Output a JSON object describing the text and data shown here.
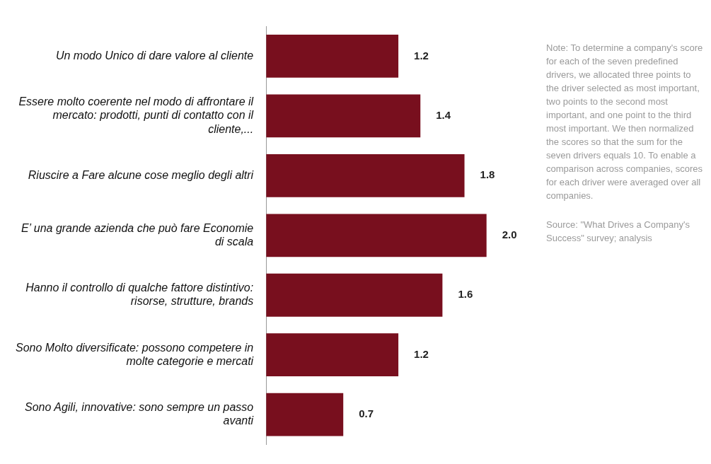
{
  "chart_data": {
    "type": "bar",
    "orientation": "horizontal",
    "categories": [
      "Un modo Unico di dare valore al cliente",
      "Essere molto coerente nel modo di affrontare il mercato: prodotti, punti di contatto con il cliente,...",
      "Riuscire a Fare alcune cose meglio degli altri",
      "E’ una grande azienda che può fare Economie di scala",
      "Hanno il controllo di qualche fattore distintivo: risorse, strutture, brands",
      "Sono Molto diversificate: possono competere in molte categorie e mercati",
      "Sono Agili, innovative: sono sempre un passo avanti"
    ],
    "values": [
      1.2,
      1.4,
      1.8,
      2.0,
      1.6,
      1.2,
      0.7
    ],
    "color": "#780f1e",
    "value_labels": [
      "1.2",
      "1.4",
      "1.8",
      "2.0",
      "1.6",
      "1.2",
      "0.7"
    ],
    "legend": false,
    "annotations": [
      "Note: To determine a company's score for each of the seven predefined drivers, we allocated three points to the driver selected as most important, two points to the second most important, and one point to the third most important. We then normalized the scores so that the sum for the seven drivers equals 10. To enable a comparison across companies, scores for each driver were averaged over all companies.",
      "Source: \"What Drives a Company's Success\" survey; analysis"
    ]
  }
}
